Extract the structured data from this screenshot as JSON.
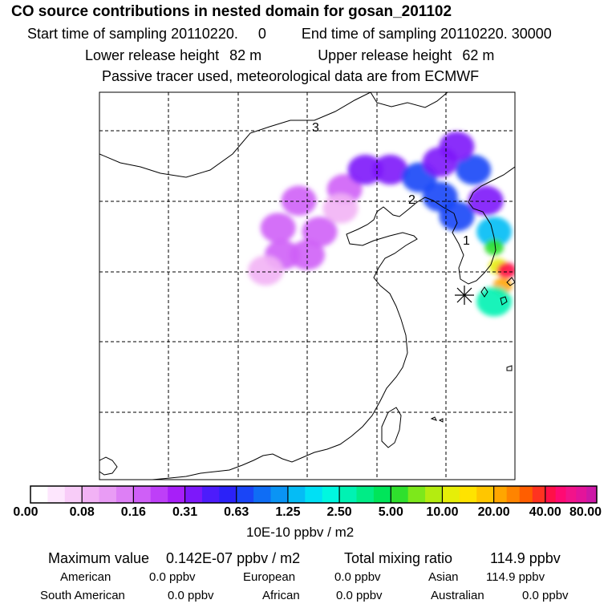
{
  "header": {
    "title": "CO  source contributions in nested domain for gosan_201102",
    "start_label": "Start time of sampling",
    "start_value": "20110220.     0",
    "end_label": "End time of sampling",
    "end_value": "20110220. 30000",
    "lower_label": "Lower release height",
    "lower_value": "82 m",
    "upper_label": "Upper release height",
    "upper_value": "62 m",
    "note": "Passive tracer used, meteorological data are from ECMWF"
  },
  "chart_data": {
    "type": "heatmap",
    "title": "CO  source contributions in nested domain for gosan_201102",
    "colorbar": {
      "unit_label": "10E-10 ppbv / m2",
      "tick_labels": [
        "0.00",
        "0.08",
        "0.16",
        "0.31",
        "0.63",
        "1.25",
        "2.50",
        "5.00",
        "10.00",
        "20.00",
        "40.00",
        "80.00"
      ],
      "colors": [
        "#ffffff",
        "#fde6fd",
        "#f8ccf8",
        "#f2b2f5",
        "#e99cf5",
        "#dd7ff5",
        "#cf5ff7",
        "#be3ff8",
        "#a71ff8",
        "#7d18fa",
        "#4d1cfb",
        "#2b22f8",
        "#1a45f7",
        "#0f6df5",
        "#0a94f4",
        "#05bcf5",
        "#00e0f5",
        "#00f7e0",
        "#00f2b3",
        "#00ec86",
        "#00e55a",
        "#2fe02d",
        "#7de81b",
        "#b4ec10",
        "#e6ee08",
        "#ffe300",
        "#ffc600",
        "#ffa600",
        "#ff8400",
        "#ff5e00",
        "#ff3320",
        "#ff1048",
        "#ff0a73",
        "#f2138a",
        "#e3149a",
        "#cc18a6",
        "#b219b0",
        "#9418ae",
        "#74158f",
        "#56106f"
      ],
      "bands_per_interval": [
        3,
        3,
        3,
        3,
        3,
        3,
        3,
        3,
        3,
        4,
        5
      ]
    },
    "cells": [
      {
        "x": 0.59,
        "y": 0.25,
        "v": 0.16
      },
      {
        "x": 0.64,
        "y": 0.2,
        "v": 0.31
      },
      {
        "x": 0.7,
        "y": 0.2,
        "v": 0.31
      },
      {
        "x": 0.77,
        "y": 0.22,
        "v": 0.63
      },
      {
        "x": 0.82,
        "y": 0.27,
        "v": 0.63
      },
      {
        "x": 0.86,
        "y": 0.32,
        "v": 0.63
      },
      {
        "x": 0.9,
        "y": 0.2,
        "v": 0.63
      },
      {
        "x": 0.86,
        "y": 0.14,
        "v": 0.31
      },
      {
        "x": 0.82,
        "y": 0.18,
        "v": 0.31
      },
      {
        "x": 0.93,
        "y": 0.28,
        "v": 0.31
      },
      {
        "x": 0.95,
        "y": 0.36,
        "v": 1.25
      },
      {
        "x": 0.95,
        "y": 0.4,
        "v": 5.0
      },
      {
        "x": 0.96,
        "y": 0.45,
        "v": 10.0
      },
      {
        "x": 0.97,
        "y": 0.5,
        "v": 20.0
      },
      {
        "x": 0.98,
        "y": 0.46,
        "v": 40.0
      },
      {
        "x": 0.95,
        "y": 0.54,
        "v": 2.5
      },
      {
        "x": 0.43,
        "y": 0.35,
        "v": 0.16
      },
      {
        "x": 0.48,
        "y": 0.28,
        "v": 0.16
      },
      {
        "x": 0.5,
        "y": 0.42,
        "v": 0.16
      },
      {
        "x": 0.44,
        "y": 0.42,
        "v": 0.16
      },
      {
        "x": 0.4,
        "y": 0.46,
        "v": 0.08
      },
      {
        "x": 0.53,
        "y": 0.36,
        "v": 0.16
      },
      {
        "x": 0.58,
        "y": 0.3,
        "v": 0.08
      }
    ],
    "contour_labels": [
      "3",
      "2",
      "1"
    ],
    "receptor": "star"
  },
  "footer": {
    "max_label": "Maximum value",
    "max_value": "0.142E-07 ppbv / m2",
    "total_label": "Total mixing ratio",
    "total_value": "114.9 ppbv",
    "regions": [
      {
        "name": "American",
        "value": "0.0 ppbv"
      },
      {
        "name": "European",
        "value": "0.0 ppbv"
      },
      {
        "name": "Asian",
        "value": "114.9 ppbv"
      },
      {
        "name": "South American",
        "value": "0.0 ppbv"
      },
      {
        "name": "African",
        "value": "0.0 ppbv"
      },
      {
        "name": "Australian",
        "value": "0.0 ppbv"
      }
    ]
  }
}
